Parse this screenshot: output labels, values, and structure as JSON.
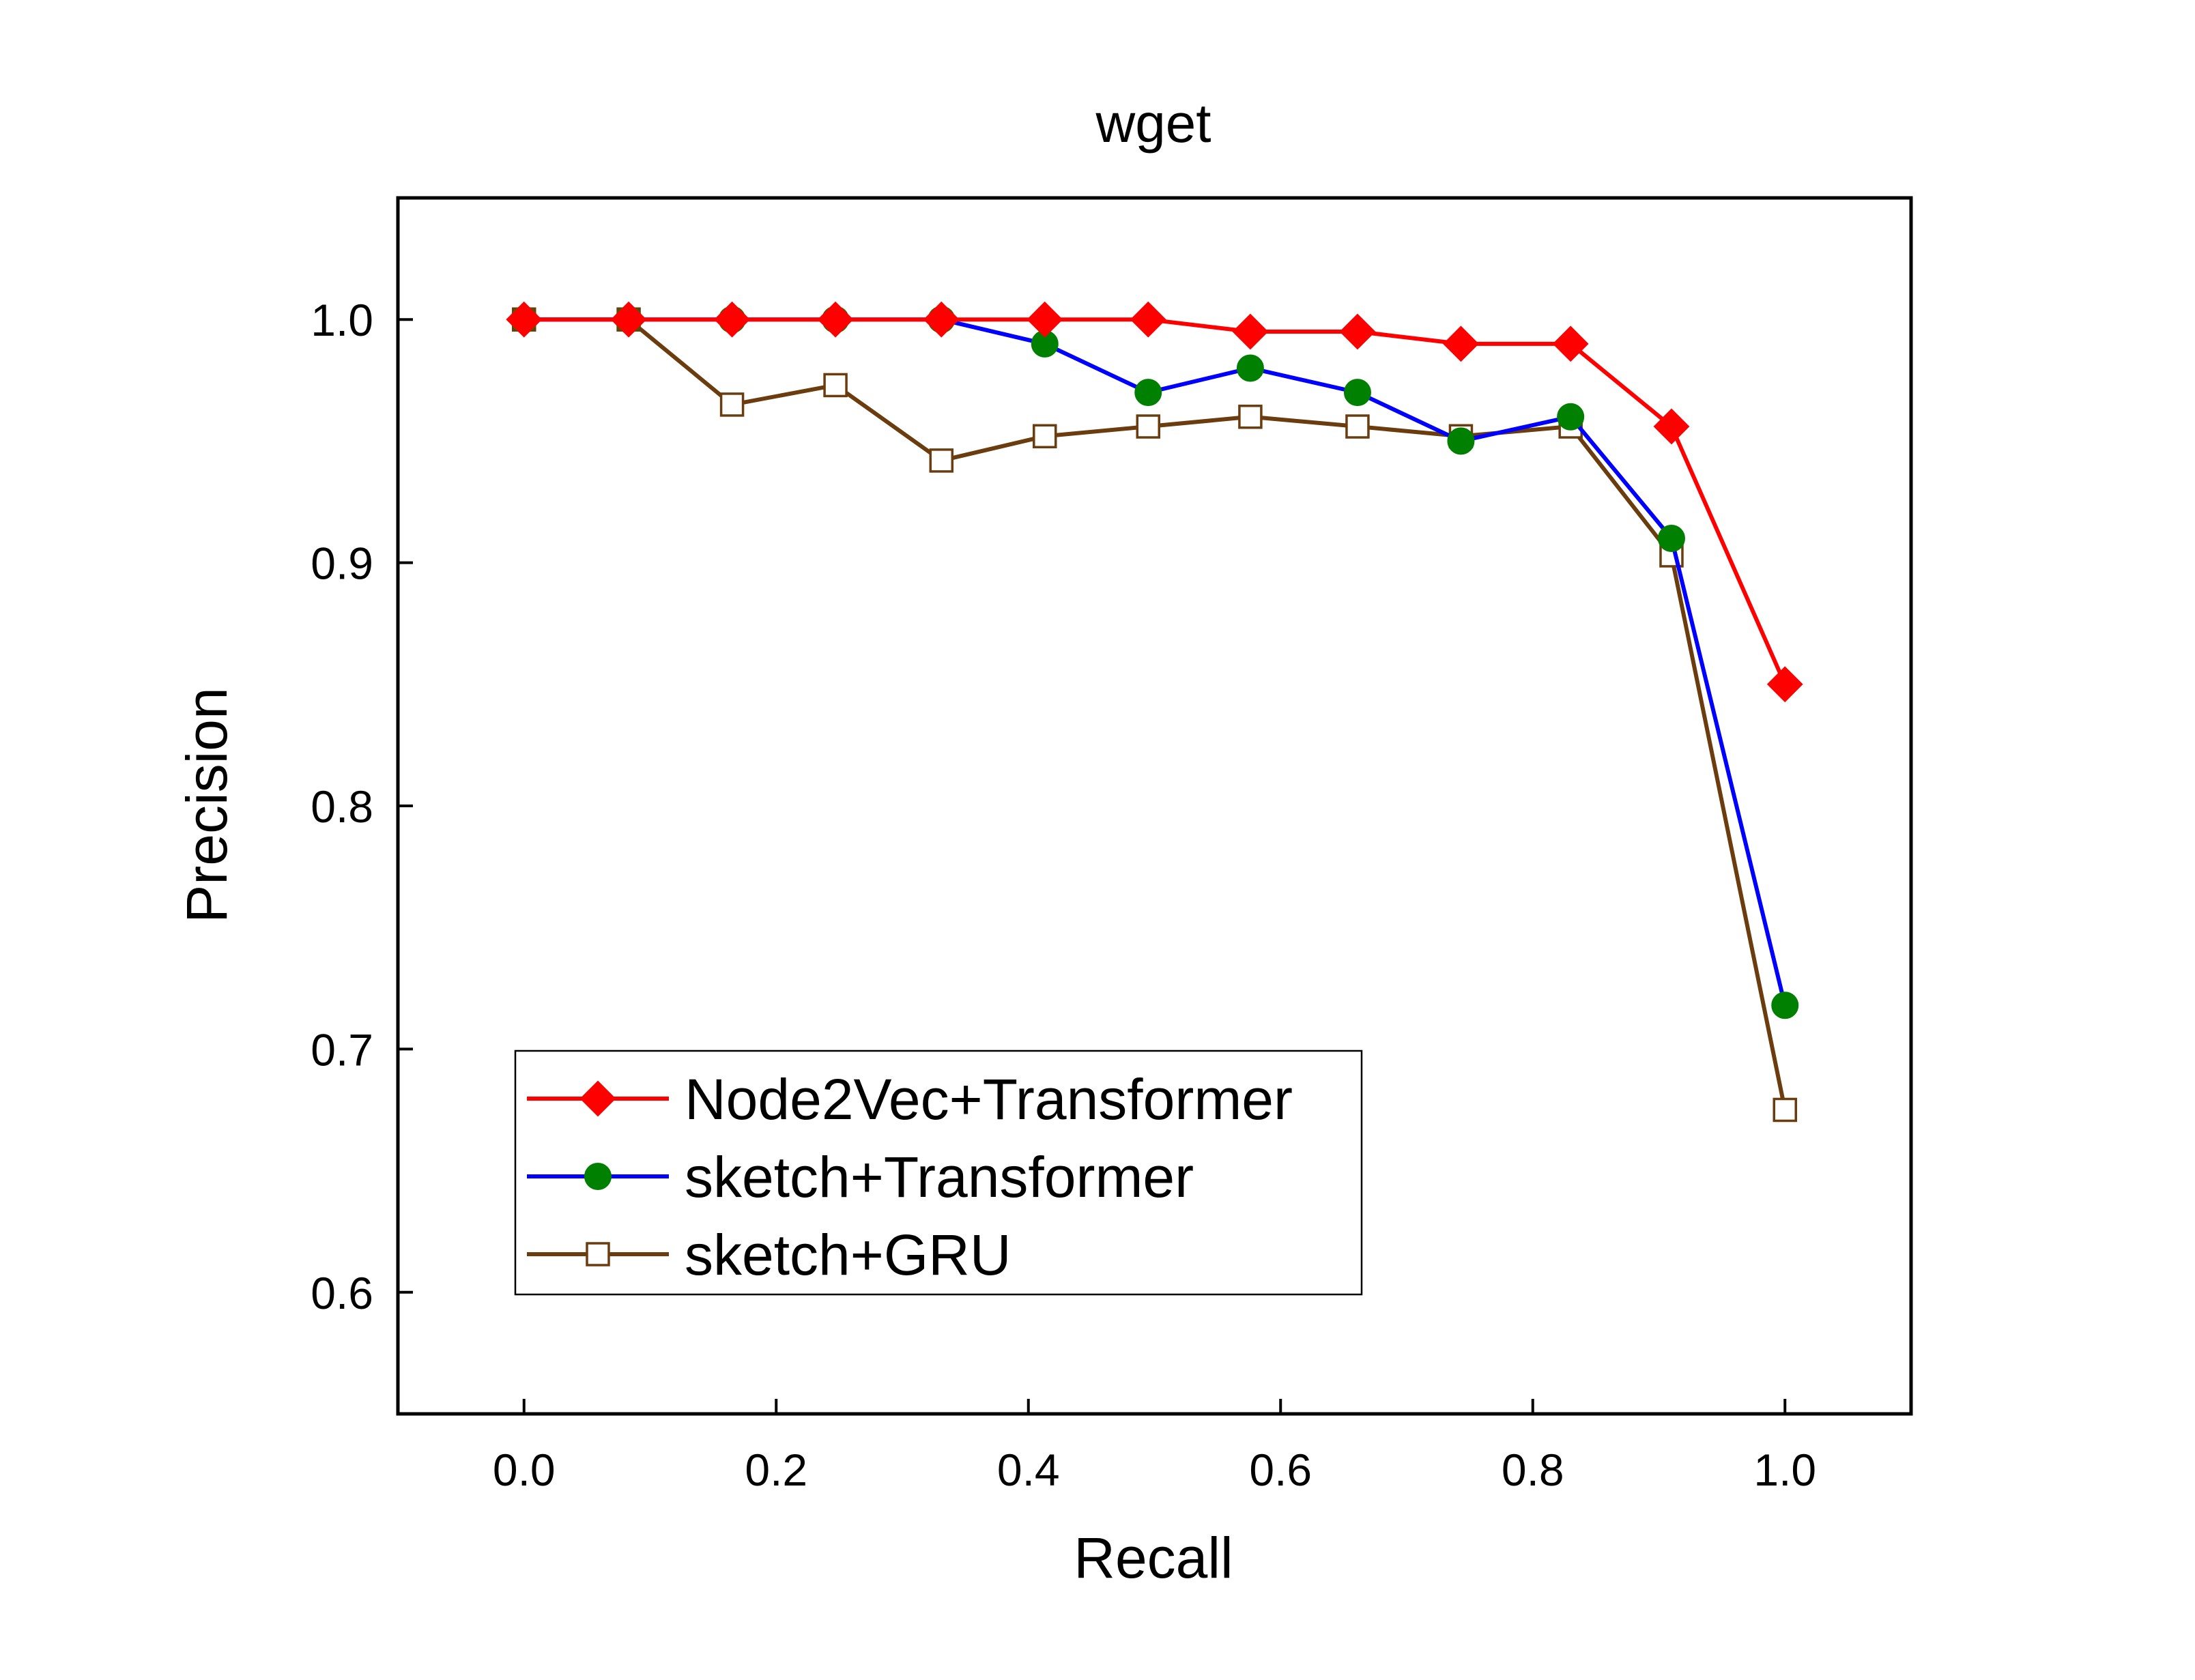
{
  "chart_data": {
    "type": "line",
    "title": "wget",
    "xlabel": "Recall",
    "ylabel": "Precision",
    "xlim": [
      -0.1,
      1.1
    ],
    "ylim": [
      0.55,
      1.05
    ],
    "xticks": [
      0.0,
      0.2,
      0.4,
      0.6,
      0.8,
      1.0
    ],
    "xtick_labels": [
      "0.0",
      "0.2",
      "0.4",
      "0.6",
      "0.8",
      "1.0"
    ],
    "yticks": [
      0.6,
      0.7,
      0.8,
      0.9,
      1.0
    ],
    "ytick_labels": [
      "0.6",
      "0.7",
      "0.8",
      "0.9",
      "1.0"
    ],
    "grid": false,
    "legend_position": "bottom-left",
    "series": [
      {
        "name": "Node2Vec+Transformer",
        "color": "#ff0000",
        "marker": "diamond-filled",
        "marker_color": "#ff0000",
        "points": [
          [
            0.0,
            1.0
          ],
          [
            0.083,
            1.0
          ],
          [
            0.165,
            1.0
          ],
          [
            0.247,
            1.0
          ],
          [
            0.331,
            1.0
          ],
          [
            0.413,
            1.0
          ],
          [
            0.495,
            1.0
          ],
          [
            0.576,
            0.995
          ],
          [
            0.661,
            0.995
          ],
          [
            0.743,
            0.99
          ],
          [
            0.83,
            0.99
          ],
          [
            0.91,
            0.956
          ],
          [
            1.0,
            0.85
          ]
        ]
      },
      {
        "name": "sketch+Transformer",
        "color": "#0000ff",
        "marker": "circle-filled",
        "marker_color": "#008000",
        "points": [
          [
            0.0,
            1.0
          ],
          [
            0.083,
            1.0
          ],
          [
            0.165,
            1.0
          ],
          [
            0.247,
            1.0
          ],
          [
            0.331,
            1.0
          ],
          [
            0.413,
            0.99
          ],
          [
            0.495,
            0.97
          ],
          [
            0.576,
            0.98
          ],
          [
            0.661,
            0.97
          ],
          [
            0.743,
            0.95
          ],
          [
            0.83,
            0.96
          ],
          [
            0.91,
            0.91
          ],
          [
            1.0,
            0.718
          ]
        ]
      },
      {
        "name": "sketch+GRU",
        "color": "#6b3c0e",
        "marker": "square-open",
        "marker_color": "#6b3c0e",
        "points": [
          [
            0.0,
            1.0
          ],
          [
            0.083,
            1.0
          ],
          [
            0.165,
            0.965
          ],
          [
            0.247,
            0.973
          ],
          [
            0.331,
            0.942
          ],
          [
            0.413,
            0.952
          ],
          [
            0.495,
            0.956
          ],
          [
            0.576,
            0.96
          ],
          [
            0.661,
            0.956
          ],
          [
            0.743,
            0.952
          ],
          [
            0.83,
            0.956
          ],
          [
            0.91,
            0.903
          ],
          [
            1.0,
            0.675
          ]
        ]
      }
    ]
  }
}
